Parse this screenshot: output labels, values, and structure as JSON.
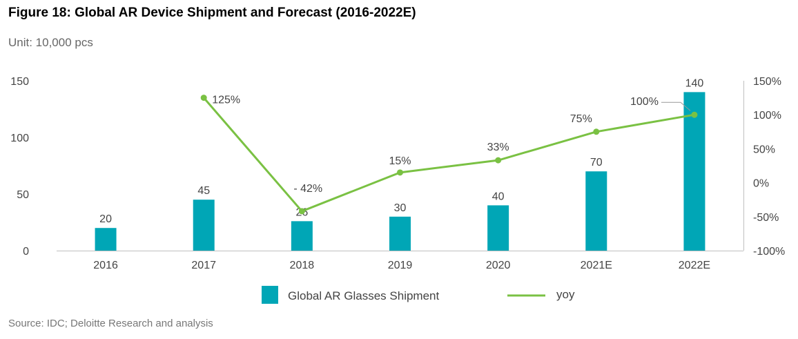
{
  "title": "Figure 18: Global AR Device Shipment and Forecast (2016-2022E)",
  "unit": "Unit: 10,000 pcs",
  "source": "Source: IDC; Deloitte Research and analysis",
  "colors": {
    "bar": "#00a6b6",
    "line": "#7ac143",
    "axis": "#bfbfbf"
  },
  "chart_data": {
    "type": "bar",
    "categories": [
      "2016",
      "2017",
      "2018",
      "2019",
      "2020",
      "2021E",
      "2022E"
    ],
    "series": [
      {
        "name": "Global AR Glasses Shipment",
        "type": "bar",
        "axis": "left",
        "values": [
          20,
          45,
          26,
          30,
          40,
          70,
          140
        ],
        "labels": [
          "20",
          "45",
          "26",
          "30",
          "40",
          "70",
          "140"
        ]
      },
      {
        "name": "yoy",
        "type": "line",
        "axis": "right",
        "values": [
          null,
          125,
          -42,
          15,
          33,
          75,
          100
        ],
        "labels": [
          "",
          "125%",
          "- 42%",
          "15%",
          "33%",
          "75%",
          "100%"
        ]
      }
    ],
    "ylim": [
      0,
      150
    ],
    "yticks": [
      "0",
      "50",
      "100",
      "150"
    ],
    "y2lim": [
      -100,
      150
    ],
    "y2ticks": [
      "-100%",
      "-50%",
      "0%",
      "50%",
      "100%",
      "150%"
    ],
    "legend": "bottom",
    "grid": false
  }
}
